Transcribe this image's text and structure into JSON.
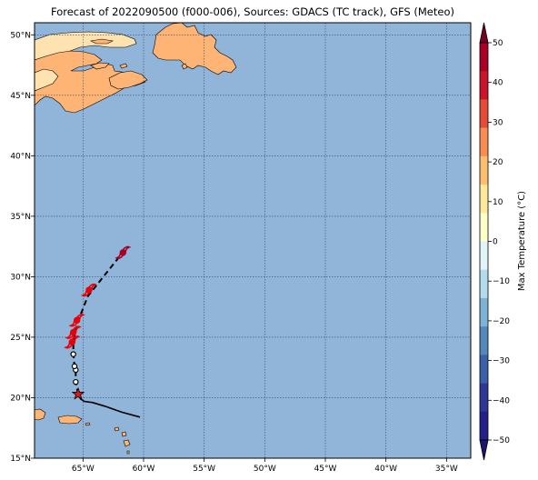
{
  "title": "Forecast of 2022090500 (f000-006), Sources: GDACS (TC track), GFS (Meteo)",
  "map": {
    "lon_range": [
      -69,
      -33
    ],
    "lat_range": [
      15,
      51
    ],
    "lon_ticks": [
      -65,
      -60,
      -55,
      -50,
      -45,
      -40,
      -35
    ],
    "lon_tick_labels": [
      "65°W",
      "60°W",
      "55°W",
      "50°W",
      "45°W",
      "40°W",
      "35°W"
    ],
    "lat_ticks": [
      15,
      20,
      25,
      30,
      35,
      40,
      45,
      50
    ],
    "lat_tick_labels": [
      "15°N",
      "20°N",
      "25°N",
      "30°N",
      "35°N",
      "40°N",
      "45°N",
      "50°N"
    ],
    "gridlines": true,
    "ocean_color": "#91b4d9",
    "land_color": "#fdb474",
    "cool_land_color": "#fee3b1"
  },
  "colorbar": {
    "label": "Max Temperature (°C)",
    "ticks": [
      50,
      40,
      30,
      20,
      10,
      0,
      -10,
      -20,
      -30,
      -40,
      -50
    ],
    "tick_labels": [
      "50",
      "40",
      "30",
      "20",
      "10",
      "0",
      "−10",
      "−20",
      "−30",
      "−40",
      "−50"
    ],
    "colors": [
      "#aa0026",
      "#c9142a",
      "#e64b36",
      "#f88d54",
      "#fdbe70",
      "#fee89a",
      "#feffc9",
      "#e3f4f8",
      "#b4dbeb",
      "#7fb3d5",
      "#5488bd",
      "#3b5fa8",
      "#2e3793",
      "#24208a"
    ],
    "top_extend_color": "#7a0022",
    "bottom_extend_color": "#1b1570"
  },
  "track": {
    "past": [
      [
        -60.3,
        18.4
      ],
      [
        -61.8,
        18.8
      ],
      [
        -63.2,
        19.3
      ],
      [
        -64.2,
        19.6
      ],
      [
        -64.9,
        19.7
      ],
      [
        -65.2,
        19.9
      ],
      [
        -65.4,
        20.3
      ]
    ],
    "current": [
      -65.4,
      20.3
    ],
    "forecast": [
      [
        -65.4,
        20.3
      ],
      [
        -65.6,
        21.3
      ],
      [
        -65.6,
        22.3
      ],
      [
        -65.7,
        22.6
      ],
      [
        -65.8,
        23.6
      ],
      [
        -65.8,
        24.6
      ],
      [
        -65.6,
        25.6
      ],
      [
        -65.3,
        26.6
      ],
      [
        -64.6,
        28.4
      ],
      [
        -63.4,
        29.9
      ],
      [
        -61.8,
        31.9
      ]
    ],
    "open_markers": [
      [
        -65.6,
        21.3
      ],
      [
        -65.6,
        22.3
      ],
      [
        -65.7,
        22.6
      ],
      [
        -65.8,
        23.6
      ]
    ],
    "storm_symbols": [
      [
        -65.9,
        24.6
      ],
      [
        -65.8,
        25.4
      ],
      [
        -65.5,
        26.4
      ],
      [
        -64.5,
        28.9
      ],
      [
        -61.7,
        32.0
      ]
    ],
    "colors": {
      "line": "#000000",
      "storm": "#e8000b",
      "current": "#d7191c",
      "last": "#a50026"
    }
  }
}
